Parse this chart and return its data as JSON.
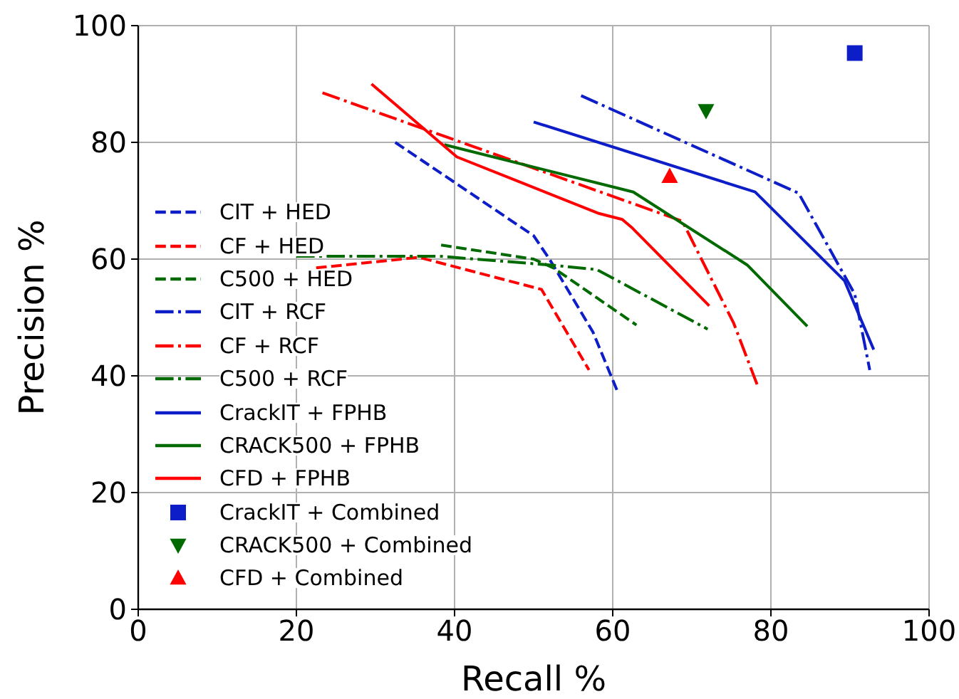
{
  "chart_data": {
    "type": "line",
    "xlabel": "Recall %",
    "ylabel": "Precision %",
    "xlim": [
      0,
      100
    ],
    "ylim": [
      0,
      100
    ],
    "xticks": [
      0,
      20,
      40,
      60,
      80,
      100
    ],
    "yticks": [
      0,
      20,
      40,
      60,
      80,
      100
    ],
    "grid": true,
    "legend": "left",
    "series": [
      {
        "name": "CIT + HED",
        "color": "#0d1ec8",
        "line_style": "dashed",
        "x": [
          32.5,
          50,
          52,
          57.5,
          60.7
        ],
        "values": [
          80,
          64,
          60,
          47.5,
          37
        ]
      },
      {
        "name": "CF + HED",
        "color": "#ff0000",
        "line_style": "dashed",
        "x": [
          22.5,
          35.5,
          51,
          57
        ],
        "values": [
          58.5,
          60.3,
          54.8,
          41
        ]
      },
      {
        "name": "C500 + HED",
        "color": "#006a00",
        "line_style": "dashed",
        "x": [
          38.3,
          50,
          52.5,
          63
        ],
        "values": [
          62.4,
          60,
          58.5,
          48.7
        ]
      },
      {
        "name": "CIT + RCF",
        "color": "#0d1ec8",
        "line_style": "dashdot",
        "x": [
          56,
          83.5,
          90.6,
          92.5
        ],
        "values": [
          88,
          71.3,
          54,
          41
        ]
      },
      {
        "name": "CF + RCF",
        "color": "#ff0000",
        "line_style": "dashdot",
        "x": [
          23.3,
          68.8,
          75.3,
          78.4
        ],
        "values": [
          88.5,
          66.5,
          49,
          38
        ]
      },
      {
        "name": "C500 + RCF",
        "color": "#006a00",
        "line_style": "dashdot",
        "x": [
          20,
          38,
          52,
          58,
          72
        ],
        "values": [
          60.5,
          60.5,
          59,
          58.2,
          48
        ]
      },
      {
        "name": "CrackIT + FPHB",
        "color": "#0d1ec8",
        "line_style": "solid",
        "x": [
          50,
          78,
          89.3,
          93
        ],
        "values": [
          83.5,
          71.5,
          56.3,
          44.5
        ]
      },
      {
        "name": "CRACK500 + FPHB",
        "color": "#006a00",
        "line_style": "solid",
        "x": [
          38.7,
          62.6,
          77,
          84.6
        ],
        "values": [
          79.6,
          71.5,
          59,
          48.5
        ]
      },
      {
        "name": "CFD + FPHB",
        "color": "#ff0000",
        "line_style": "solid",
        "x": [
          29.5,
          40.3,
          58.3,
          61.2,
          62.5,
          72.2
        ],
        "values": [
          90,
          77.5,
          67.8,
          66.8,
          65.3,
          52
        ]
      },
      {
        "name": "CrackIT + Combined",
        "type": "scatter",
        "color": "#0d1ec8",
        "marker": "square",
        "x": [
          90.6
        ],
        "values": [
          95.3
        ]
      },
      {
        "name": "CRACK500 + Combined",
        "type": "scatter",
        "color": "#006a00",
        "marker": "triangle-down",
        "x": [
          71.8
        ],
        "values": [
          85.4
        ]
      },
      {
        "name": "CFD + Combined",
        "type": "scatter",
        "color": "#ff0000",
        "marker": "triangle",
        "x": [
          67.2
        ],
        "values": [
          74.2
        ]
      }
    ]
  }
}
